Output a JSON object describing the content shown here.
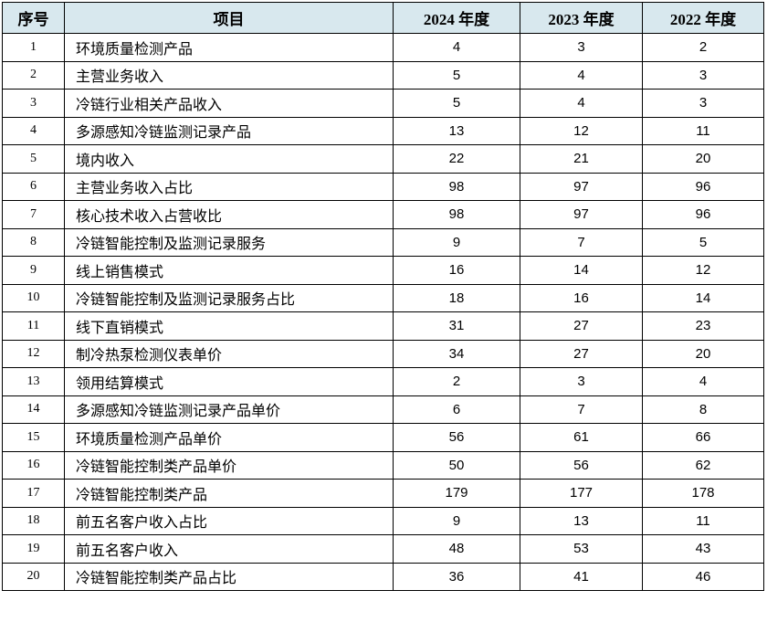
{
  "colors": {
    "header_bg": "#d8e8ee",
    "border": "#000000",
    "text": "#000000",
    "page_bg": "#ffffff"
  },
  "table": {
    "header": {
      "no": "序号",
      "item": "项目",
      "y2024": "2024 年度",
      "y2023": "2023 年度",
      "y2022": "2022 年度"
    },
    "rows": [
      {
        "no": "1",
        "item": "环境质量检测产品",
        "values": [
          "4",
          "3",
          "2"
        ]
      },
      {
        "no": "2",
        "item": "主营业务收入",
        "values": [
          "5",
          "4",
          "3"
        ]
      },
      {
        "no": "3",
        "item": "冷链行业相关产品收入",
        "values": [
          "5",
          "4",
          "3"
        ]
      },
      {
        "no": "4",
        "item": "多源感知冷链监测记录产品",
        "values": [
          "13",
          "12",
          "11"
        ]
      },
      {
        "no": "5",
        "item": "境内收入",
        "values": [
          "22",
          "21",
          "20"
        ]
      },
      {
        "no": "6",
        "item": "主营业务收入占比",
        "values": [
          "98",
          "97",
          "96"
        ]
      },
      {
        "no": "7",
        "item": "核心技术收入占营收比",
        "values": [
          "98",
          "97",
          "96"
        ]
      },
      {
        "no": "8",
        "item": "冷链智能控制及监测记录服务",
        "values": [
          "9",
          "7",
          "5"
        ]
      },
      {
        "no": "9",
        "item": "线上销售模式",
        "values": [
          "16",
          "14",
          "12"
        ]
      },
      {
        "no": "10",
        "item": "冷链智能控制及监测记录服务占比",
        "values": [
          "18",
          "16",
          "14"
        ]
      },
      {
        "no": "11",
        "item": "线下直销模式",
        "values": [
          "31",
          "27",
          "23"
        ]
      },
      {
        "no": "12",
        "item": "制冷热泵检测仪表单价",
        "values": [
          "34",
          "27",
          "20"
        ]
      },
      {
        "no": "13",
        "item": "领用结算模式",
        "values": [
          "2",
          "3",
          "4"
        ]
      },
      {
        "no": "14",
        "item": "多源感知冷链监测记录产品单价",
        "values": [
          "6",
          "7",
          "8"
        ]
      },
      {
        "no": "15",
        "item": "环境质量检测产品单价",
        "values": [
          "56",
          "61",
          "66"
        ]
      },
      {
        "no": "16",
        "item": "冷链智能控制类产品单价",
        "values": [
          "50",
          "56",
          "62"
        ]
      },
      {
        "no": "17",
        "item": "冷链智能控制类产品",
        "values": [
          "179",
          "177",
          "178"
        ]
      },
      {
        "no": "18",
        "item": "前五名客户收入占比",
        "values": [
          "9",
          "13",
          "11"
        ]
      },
      {
        "no": "19",
        "item": "前五名客户收入",
        "values": [
          "48",
          "53",
          "43"
        ]
      },
      {
        "no": "20",
        "item": "冷链智能控制类产品占比",
        "values": [
          "36",
          "41",
          "46"
        ]
      }
    ]
  }
}
